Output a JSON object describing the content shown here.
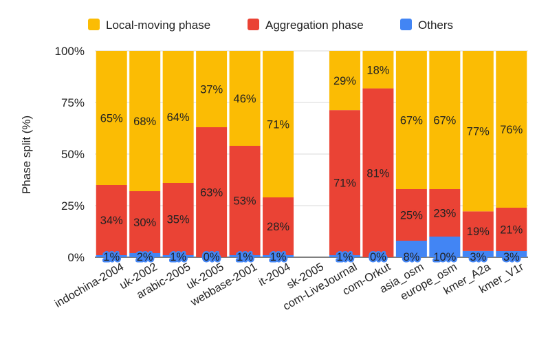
{
  "chart_data": {
    "type": "bar",
    "stacked": true,
    "title": "",
    "xlabel": "",
    "ylabel": "Phase split (%)",
    "ylim": [
      0,
      100
    ],
    "yticks": [
      "0%",
      "25%",
      "50%",
      "75%",
      "100%"
    ],
    "legend_position": "top",
    "categories": [
      "indochina-2004",
      "uk-2002",
      "arabic-2005",
      "uk-2005",
      "webbase-2001",
      "it-2004",
      "sk-2005",
      "com-LiveJournal",
      "com-Orkut",
      "asia_osm",
      "europe_osm",
      "kmer_A2a",
      "kmer_V1r"
    ],
    "series": [
      {
        "name": "Others",
        "color": "#4285f4",
        "values": [
          1,
          2,
          1,
          0,
          1,
          1,
          null,
          1,
          0,
          8,
          10,
          3,
          3
        ],
        "labels": [
          "1%",
          "2%",
          "1%",
          "0%",
          "1%",
          "1%",
          "",
          "1%",
          "0%",
          "8%",
          "10%",
          "3%",
          "3%"
        ]
      },
      {
        "name": "Aggregation phase",
        "color": "#ea4335",
        "values": [
          34,
          30,
          35,
          63,
          53,
          28,
          null,
          71,
          81,
          25,
          23,
          19,
          21
        ],
        "labels": [
          "34%",
          "30%",
          "35%",
          "63%",
          "53%",
          "28%",
          "",
          "71%",
          "81%",
          "25%",
          "23%",
          "19%",
          "21%"
        ]
      },
      {
        "name": "Local-moving phase",
        "color": "#fbbc04",
        "values": [
          65,
          68,
          64,
          37,
          46,
          71,
          null,
          29,
          18,
          67,
          67,
          77,
          76
        ],
        "labels": [
          "65%",
          "68%",
          "64%",
          "37%",
          "46%",
          "71%",
          "",
          "29%",
          "18%",
          "67%",
          "67%",
          "77%",
          "76%"
        ]
      }
    ],
    "legend": [
      {
        "name": "Local-moving phase",
        "color": "#fbbc04"
      },
      {
        "name": "Aggregation phase",
        "color": "#ea4335"
      },
      {
        "name": "Others",
        "color": "#4285f4"
      }
    ]
  }
}
